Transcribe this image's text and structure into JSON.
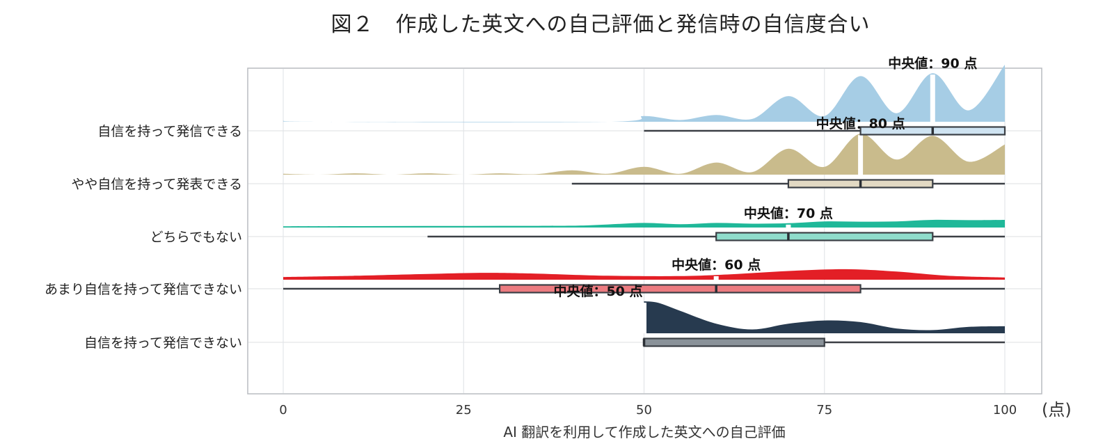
{
  "chart_data": {
    "type": "raincloud",
    "title": "図２　作成した英文への自己評価と発信時の自信度合い",
    "xlabel": "AI 翻訳を利用して作成した英文への自己評価",
    "x_unit": "(点)",
    "xlim": [
      0,
      100
    ],
    "xticks": [
      0,
      25,
      50,
      75,
      100
    ],
    "grid": true,
    "categories": [
      {
        "name": "自信を持って発信できる",
        "color": "#a6cde5",
        "box_color": "#cfe3f1",
        "box": {
          "min": 50,
          "q1": 80,
          "median": 90,
          "q3": 100,
          "max": 100
        },
        "median_label": "中央値：90 点",
        "density": [
          [
            0,
            0.02
          ],
          [
            5,
            0
          ],
          [
            45,
            0
          ],
          [
            50,
            0.1
          ],
          [
            55,
            0.03
          ],
          [
            60,
            0.12
          ],
          [
            65,
            0.05
          ],
          [
            70,
            0.45
          ],
          [
            75,
            0.1
          ],
          [
            80,
            0.8
          ],
          [
            85,
            0.15
          ],
          [
            90,
            0.85
          ],
          [
            95,
            0.2
          ],
          [
            100,
            1.0
          ]
        ]
      },
      {
        "name": "やや自信を持って発表できる",
        "color": "#c9bb8c",
        "box_color": "#e2d9c3",
        "box": {
          "min": 40,
          "q1": 70,
          "median": 80,
          "q3": 90,
          "max": 100
        },
        "median_label": "中央値：80 点",
        "density": [
          [
            0,
            0.02
          ],
          [
            5,
            0
          ],
          [
            10,
            0.03
          ],
          [
            15,
            0
          ],
          [
            20,
            0.03
          ],
          [
            25,
            0
          ],
          [
            30,
            0.03
          ],
          [
            35,
            0.01
          ],
          [
            40,
            0.1
          ],
          [
            45,
            0.02
          ],
          [
            50,
            0.18
          ],
          [
            55,
            0.02
          ],
          [
            60,
            0.28
          ],
          [
            65,
            0.06
          ],
          [
            70,
            0.6
          ],
          [
            75,
            0.18
          ],
          [
            80,
            0.95
          ],
          [
            85,
            0.35
          ],
          [
            90,
            0.9
          ],
          [
            95,
            0.3
          ],
          [
            100,
            0.7
          ]
        ]
      },
      {
        "name": "どちらでもない",
        "color": "#1fb899",
        "box_color": "#8fdccb",
        "box": {
          "min": 20,
          "q1": 60,
          "median": 70,
          "q3": 90,
          "max": 100
        },
        "median_label": "中央値：70 点",
        "density": [
          [
            0,
            0.08
          ],
          [
            10,
            0.09
          ],
          [
            20,
            0.1
          ],
          [
            30,
            0.11
          ],
          [
            40,
            0.12
          ],
          [
            45,
            0.2
          ],
          [
            50,
            0.3
          ],
          [
            55,
            0.22
          ],
          [
            60,
            0.3
          ],
          [
            65,
            0.25
          ],
          [
            70,
            0.28
          ],
          [
            75,
            0.4
          ],
          [
            80,
            0.38
          ],
          [
            85,
            0.4
          ],
          [
            90,
            0.5
          ],
          [
            95,
            0.48
          ],
          [
            100,
            0.5
          ]
        ]
      },
      {
        "name": "あまり自信を持って発信できない",
        "color": "#e31f26",
        "box_color": "#ec7b80",
        "box": {
          "min": 0,
          "q1": 30,
          "median": 60,
          "q3": 80,
          "max": 100
        },
        "median_label": "中央値：60 点",
        "density": [
          [
            0,
            0.15
          ],
          [
            10,
            0.22
          ],
          [
            20,
            0.32
          ],
          [
            28,
            0.38
          ],
          [
            35,
            0.34
          ],
          [
            45,
            0.22
          ],
          [
            55,
            0.2
          ],
          [
            62,
            0.3
          ],
          [
            70,
            0.48
          ],
          [
            78,
            0.58
          ],
          [
            85,
            0.45
          ],
          [
            92,
            0.22
          ],
          [
            100,
            0.12
          ]
        ]
      },
      {
        "name": "自信を持って発信できない",
        "color": "#273a4f",
        "box_color": "#8a9299",
        "box": {
          "min": 50,
          "q1": 50,
          "median": 50,
          "q3": 75,
          "max": 100
        },
        "median_label": "中央値：50 点",
        "density": [
          [
            50,
            1.0
          ],
          [
            52,
            0.95
          ],
          [
            55,
            0.7
          ],
          [
            60,
            0.3
          ],
          [
            65,
            0.12
          ],
          [
            70,
            0.3
          ],
          [
            75,
            0.4
          ],
          [
            80,
            0.35
          ],
          [
            85,
            0.15
          ],
          [
            90,
            0.1
          ],
          [
            95,
            0.2
          ],
          [
            100,
            0.22
          ]
        ]
      }
    ]
  }
}
